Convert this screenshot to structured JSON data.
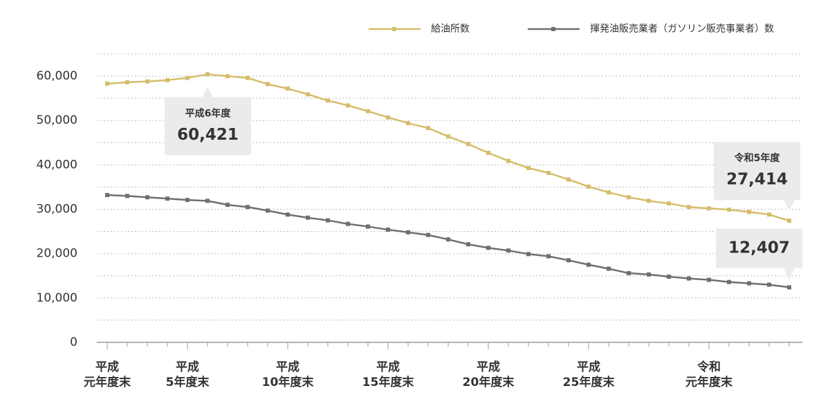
{
  "chart_data": {
    "type": "line",
    "categories": [
      [
        "平成",
        "元年度末"
      ],
      null,
      null,
      null,
      [
        "平成",
        "5年度末"
      ],
      null,
      null,
      null,
      null,
      [
        "平成",
        "10年度末"
      ],
      null,
      null,
      null,
      null,
      [
        "平成",
        "15年度末"
      ],
      null,
      null,
      null,
      null,
      [
        "平成",
        "20年度末"
      ],
      null,
      null,
      null,
      null,
      [
        "平成",
        "25年度末"
      ],
      null,
      null,
      null,
      null,
      null,
      [
        "令和",
        "元年度末"
      ],
      null,
      null,
      null,
      null
    ],
    "series": [
      {
        "name": "給油所数",
        "color": "#d5bd6c",
        "values": [
          58300,
          58600,
          58800,
          59100,
          59600,
          60421,
          60000,
          59600,
          58200,
          57200,
          55900,
          54500,
          53400,
          52100,
          50700,
          49400,
          48300,
          46400,
          44700,
          42700,
          40900,
          39300,
          38200,
          36700,
          35100,
          33800,
          32700,
          31900,
          31300,
          30500,
          30200,
          29900,
          29400,
          28800,
          27414
        ],
        "value_labels": [
          null,
          null,
          null,
          null,
          null,
          "60,421",
          null,
          null,
          null,
          null,
          null,
          null,
          null,
          null,
          null,
          null,
          null,
          null,
          null,
          null,
          null,
          null,
          null,
          null,
          null,
          null,
          null,
          null,
          null,
          null,
          null,
          null,
          null,
          null,
          "27,414"
        ],
        "value_notes": [
          null,
          null,
          null,
          null,
          null,
          "平成6年度",
          null,
          null,
          null,
          null,
          null,
          null,
          null,
          null,
          null,
          null,
          null,
          null,
          null,
          null,
          null,
          null,
          null,
          null,
          null,
          null,
          null,
          null,
          null,
          null,
          null,
          null,
          null,
          null,
          "令和5年度"
        ]
      },
      {
        "name": "揮発油販売業者（ガソリン販売事業者）数",
        "color": "#6f6f6f",
        "values": [
          33200,
          33000,
          32700,
          32400,
          32100,
          31900,
          31000,
          30500,
          29700,
          28800,
          28100,
          27500,
          26700,
          26100,
          25400,
          24800,
          24200,
          23200,
          22100,
          21300,
          20700,
          19900,
          19400,
          18500,
          17500,
          16600,
          15600,
          15300,
          14800,
          14400,
          14100,
          13600,
          13300,
          13000,
          12407
        ],
        "value_labels": [
          null,
          null,
          null,
          null,
          null,
          null,
          null,
          null,
          null,
          null,
          null,
          null,
          null,
          null,
          null,
          null,
          null,
          null,
          null,
          null,
          null,
          null,
          null,
          null,
          null,
          null,
          null,
          null,
          null,
          null,
          null,
          null,
          null,
          null,
          "12,407"
        ]
      }
    ],
    "ylim": [
      0,
      65000
    ],
    "yticks": [
      0,
      {
        "value": 10000,
        "label": "10,000"
      },
      {
        "value": 20000,
        "label": "20,000"
      },
      {
        "value": 30000,
        "label": "30,000"
      },
      {
        "value": 40000,
        "label": "40,000"
      },
      {
        "value": 50000,
        "label": "50,000"
      },
      {
        "value": 60000,
        "label": "60,000"
      }
    ],
    "grid": true,
    "legend": "top-right"
  }
}
